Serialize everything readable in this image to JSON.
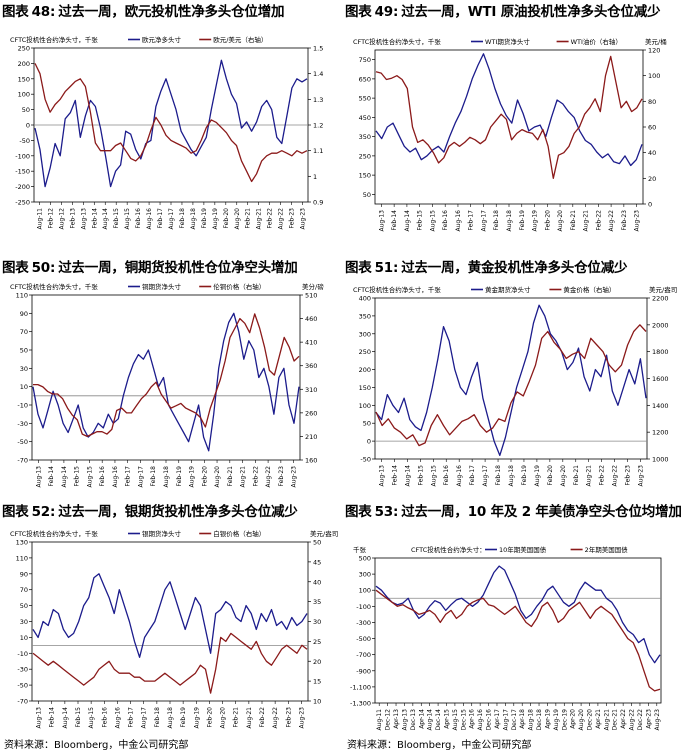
{
  "source_label": "资料来源：Bloomberg，中金公司研究部",
  "chart_data": [
    {
      "type": "line",
      "title": "过去一周，欧元投机性净多头仓位增加",
      "title_prefix": "图表",
      "title_num": "48:",
      "left_axis_label": "CFTC投机性合约净头寸，千张",
      "right_axis_label": "",
      "legend": [
        "欧元净多头寸",
        "欧元/美元（右轴）"
      ],
      "ylim_left": [
        -250,
        250
      ],
      "yticks_left": [
        "250",
        "200",
        "150",
        "100",
        "50",
        "0",
        "-50",
        "-100",
        "-150",
        "-200",
        "-250"
      ],
      "ylim_right": [
        0.9,
        1.5
      ],
      "yticks_right": [
        "1.5",
        "1.4",
        "1.3",
        "1.2",
        "1.1",
        "1",
        "0.9"
      ],
      "zero_left": 0,
      "xticks": [
        "Aug-11",
        "Feb-12",
        "Aug-12",
        "Feb-13",
        "Aug-13",
        "Feb-14",
        "Aug-14",
        "Feb-15",
        "Aug-15",
        "Feb-16",
        "Aug-16",
        "Feb-17",
        "Aug-17",
        "Feb-18",
        "Aug-18",
        "Feb-19",
        "Aug-19",
        "Feb-20",
        "Aug-20",
        "Feb-21",
        "Aug-21",
        "Feb-22",
        "Aug-22",
        "Feb-23",
        "Aug-23"
      ],
      "series": [
        {
          "name": "欧元净多头寸",
          "axis": "left",
          "color": "#1c1c8c",
          "values": [
            -10,
            -80,
            -200,
            -140,
            -60,
            -100,
            20,
            40,
            80,
            -40,
            30,
            80,
            60,
            -10,
            -100,
            -200,
            -150,
            -130,
            -20,
            -30,
            -80,
            -110,
            -60,
            -50,
            60,
            110,
            150,
            100,
            50,
            -20,
            -50,
            -80,
            -100,
            -70,
            -40,
            50,
            130,
            210,
            150,
            100,
            70,
            -10,
            10,
            -20,
            10,
            60,
            80,
            50,
            -40,
            -60,
            30,
            120,
            150,
            140,
            150
          ]
        },
        {
          "name": "欧元/美元（右轴）",
          "axis": "right",
          "color": "#8b1a1a",
          "values": [
            1.44,
            1.4,
            1.3,
            1.25,
            1.28,
            1.3,
            1.33,
            1.35,
            1.37,
            1.38,
            1.35,
            1.25,
            1.13,
            1.1,
            1.1,
            1.1,
            1.12,
            1.13,
            1.1,
            1.07,
            1.06,
            1.08,
            1.12,
            1.18,
            1.23,
            1.2,
            1.16,
            1.14,
            1.13,
            1.12,
            1.11,
            1.09,
            1.1,
            1.14,
            1.19,
            1.22,
            1.21,
            1.19,
            1.17,
            1.14,
            1.12,
            1.06,
            1.02,
            0.98,
            1.01,
            1.06,
            1.08,
            1.09,
            1.09,
            1.1,
            1.09,
            1.08,
            1.1,
            1.09,
            1.1
          ]
        }
      ]
    },
    {
      "type": "line",
      "title": "过去一周，WTI 原油投机性净多头仓位减少",
      "title_prefix": "图表",
      "title_num": "49:",
      "left_axis_label": "CFTC投机性合约净头寸，千张",
      "right_axis_label": "美元/桶",
      "legend": [
        "WTI期货净头寸",
        "WTI油价（右轴）"
      ],
      "ylim_left": [
        0,
        800
      ],
      "yticks_left": [
        "750",
        "650",
        "550",
        "450",
        "350",
        "250",
        "150",
        "50"
      ],
      "ylim_right": [
        0,
        120
      ],
      "yticks_right": [
        "120",
        "100",
        "80",
        "60",
        "40",
        "20",
        "0"
      ],
      "zero_left": null,
      "xticks": [
        "Aug-13",
        "Feb-14",
        "Aug-14",
        "Feb-15",
        "Aug-15",
        "Feb-16",
        "Aug-16",
        "Feb-17",
        "Aug-17",
        "Feb-18",
        "Aug-18",
        "Feb-19",
        "Aug-19",
        "Feb-20",
        "Aug-20",
        "Feb-21",
        "Aug-21",
        "Feb-22",
        "Aug-22",
        "Feb-23",
        "Aug-23"
      ],
      "series": [
        {
          "name": "WTI期货净头寸",
          "axis": "left",
          "color": "#1c1c8c",
          "values": [
            380,
            340,
            400,
            420,
            360,
            300,
            270,
            290,
            230,
            250,
            280,
            300,
            270,
            350,
            420,
            480,
            560,
            650,
            720,
            780,
            700,
            600,
            520,
            460,
            420,
            540,
            470,
            380,
            400,
            410,
            350,
            450,
            540,
            520,
            480,
            450,
            380,
            330,
            310,
            270,
            240,
            260,
            220,
            210,
            250,
            200,
            230,
            310
          ]
        },
        {
          "name": "WTI油价（右轴）",
          "axis": "right",
          "color": "#8b1a1a",
          "values": [
            103,
            102,
            97,
            98,
            100,
            97,
            90,
            60,
            48,
            50,
            46,
            40,
            32,
            36,
            45,
            48,
            45,
            48,
            52,
            50,
            47,
            50,
            60,
            65,
            70,
            66,
            50,
            55,
            58,
            56,
            55,
            50,
            58,
            45,
            20,
            38,
            40,
            45,
            55,
            60,
            70,
            75,
            82,
            72,
            100,
            115,
            95,
            75,
            80,
            72,
            75,
            82
          ]
        }
      ]
    },
    {
      "type": "line",
      "title": "过去一周，铜期货投机性仓位净空头增加",
      "title_prefix": "图表",
      "title_num": "50:",
      "left_axis_label": "CFTC投机性合约净头寸，千张",
      "right_axis_label": "美分/磅",
      "legend": [
        "铜期货净头寸",
        "伦铜价格（右轴）"
      ],
      "ylim_left": [
        -70,
        110
      ],
      "yticks_left": [
        "110",
        "90",
        "70",
        "50",
        "30",
        "10",
        "-10",
        "-30",
        "-50",
        "-70"
      ],
      "ylim_right": [
        160,
        510
      ],
      "yticks_right": [
        "510",
        "460",
        "410",
        "360",
        "310",
        "260",
        "210",
        "160"
      ],
      "zero_left": 0,
      "xticks": [
        "Aug-13",
        "Feb-14",
        "Aug-14",
        "Feb-15",
        "Aug-15",
        "Feb-16",
        "Aug-16",
        "Feb-17",
        "Aug-17",
        "Feb-18",
        "Aug-18",
        "Feb-19",
        "Aug-19",
        "Feb-20",
        "Aug-20",
        "Feb-21",
        "Aug-21",
        "Feb-22",
        "Aug-22",
        "Feb-23",
        "Aug-23"
      ],
      "series": [
        {
          "name": "铜期货净头寸",
          "axis": "left",
          "color": "#1c1c8c",
          "values": [
            10,
            -20,
            -35,
            -15,
            5,
            -10,
            -30,
            -40,
            -25,
            -10,
            -35,
            -45,
            -40,
            -30,
            -35,
            -20,
            -30,
            -25,
            0,
            20,
            35,
            45,
            40,
            50,
            30,
            10,
            20,
            -10,
            -20,
            -30,
            -40,
            -50,
            -30,
            -10,
            -45,
            -60,
            -20,
            30,
            60,
            80,
            90,
            70,
            40,
            60,
            50,
            20,
            30,
            10,
            -20,
            20,
            30,
            -10,
            -30,
            10
          ]
        },
        {
          "name": "伦铜价格（右轴）",
          "axis": "right",
          "color": "#8b1a1a",
          "values": [
            320,
            320,
            315,
            305,
            300,
            300,
            290,
            270,
            255,
            245,
            215,
            210,
            215,
            220,
            220,
            215,
            225,
            265,
            270,
            260,
            260,
            275,
            290,
            300,
            315,
            325,
            300,
            285,
            270,
            275,
            280,
            270,
            265,
            260,
            250,
            230,
            270,
            300,
            330,
            370,
            420,
            440,
            460,
            450,
            430,
            470,
            440,
            400,
            350,
            340,
            380,
            420,
            400,
            370,
            380
          ]
        }
      ]
    },
    {
      "type": "line",
      "title": "过去一周，黄金投机性净多头仓位减少",
      "title_prefix": "图表",
      "title_num": "51:",
      "left_axis_label": "CFTC投机性合约净头寸，千张",
      "right_axis_label": "美元/盎司",
      "legend": [
        "黄金期货净头寸",
        "黄金价格（右轴）"
      ],
      "ylim_left": [
        -50,
        400
      ],
      "yticks_left": [
        "400",
        "350",
        "300",
        "250",
        "200",
        "150",
        "100",
        "50",
        "0",
        "-50"
      ],
      "ylim_right": [
        1000,
        2200
      ],
      "yticks_right": [
        "2200",
        "2000",
        "1800",
        "1600",
        "1400",
        "1200",
        "1000"
      ],
      "zero_left": 0,
      "xticks": [
        "Aug-13",
        "Feb-14",
        "Aug-14",
        "Feb-15",
        "Aug-15",
        "Feb-16",
        "Aug-16",
        "Feb-17",
        "Aug-17",
        "Feb-18",
        "Aug-18",
        "Feb-19",
        "Aug-19",
        "Feb-20",
        "Aug-20",
        "Feb-21",
        "Aug-21",
        "Feb-22",
        "Aug-22",
        "Feb-23",
        "Aug-23"
      ],
      "series": [
        {
          "name": "黄金期货净头寸",
          "axis": "left",
          "color": "#1c1c8c",
          "values": [
            80,
            60,
            130,
            100,
            80,
            120,
            60,
            40,
            30,
            80,
            150,
            230,
            320,
            280,
            200,
            150,
            130,
            180,
            220,
            120,
            60,
            0,
            -40,
            10,
            80,
            150,
            200,
            250,
            330,
            380,
            350,
            300,
            280,
            250,
            200,
            220,
            260,
            180,
            140,
            200,
            180,
            240,
            140,
            100,
            150,
            200,
            160,
            230,
            120
          ]
        },
        {
          "name": "黄金价格（右轴）",
          "axis": "right",
          "color": "#8b1a1a",
          "values": [
            1350,
            1250,
            1300,
            1230,
            1200,
            1150,
            1180,
            1100,
            1120,
            1250,
            1330,
            1250,
            1180,
            1230,
            1280,
            1300,
            1330,
            1250,
            1200,
            1230,
            1300,
            1280,
            1420,
            1500,
            1470,
            1580,
            1700,
            1900,
            1950,
            1870,
            1820,
            1750,
            1780,
            1800,
            1750,
            1900,
            1850,
            1800,
            1700,
            1650,
            1700,
            1850,
            1950,
            2000,
            1950
          ]
        }
      ]
    },
    {
      "type": "line",
      "title": "过去一周，银期货投机性净多头仓位减少",
      "title_prefix": "图表",
      "title_num": "52:",
      "left_axis_label": "CFTC投机性合约净头寸，千张",
      "right_axis_label": "美元/盎司",
      "legend": [
        "银期货净头寸",
        "白银价格（右轴）"
      ],
      "ylim_left": [
        -70,
        130
      ],
      "yticks_left": [
        "130",
        "110",
        "90",
        "70",
        "50",
        "30",
        "10",
        "-10",
        "-30",
        "-50",
        "-70"
      ],
      "ylim_right": [
        10,
        50
      ],
      "yticks_right": [
        "50",
        "45",
        "40",
        "35",
        "30",
        "25",
        "20",
        "15",
        "10"
      ],
      "zero_left": 0,
      "xticks": [
        "Aug-13",
        "Feb-14",
        "Aug-14",
        "Feb-15",
        "Aug-15",
        "Feb-16",
        "Aug-16",
        "Feb-17",
        "Aug-17",
        "Feb-18",
        "Aug-18",
        "Feb-19",
        "Aug-19",
        "Feb-20",
        "Aug-20",
        "Feb-21",
        "Aug-21",
        "Feb-22",
        "Aug-22",
        "Feb-23",
        "Aug-23"
      ],
      "series": [
        {
          "name": "银期货净头寸",
          "axis": "left",
          "color": "#1c1c8c",
          "values": [
            20,
            10,
            30,
            25,
            45,
            40,
            20,
            10,
            15,
            30,
            50,
            60,
            85,
            90,
            75,
            60,
            40,
            70,
            50,
            30,
            5,
            -15,
            10,
            20,
            30,
            50,
            70,
            80,
            60,
            40,
            20,
            40,
            60,
            50,
            20,
            -10,
            40,
            45,
            55,
            50,
            35,
            30,
            50,
            40,
            20,
            40,
            30,
            45,
            25,
            30,
            20,
            35,
            25,
            30,
            40
          ]
        },
        {
          "name": "白银价格（右轴）",
          "axis": "right",
          "color": "#8b1a1a",
          "values": [
            22,
            21,
            20,
            19,
            20,
            19,
            18,
            17,
            16,
            15,
            14,
            15,
            16,
            18,
            19,
            20,
            18,
            17,
            17,
            17,
            16,
            16,
            15,
            15,
            15,
            16,
            17,
            16,
            15,
            14,
            15,
            16,
            17,
            19,
            18,
            12,
            18,
            26,
            25,
            27,
            26,
            25,
            24,
            23,
            25,
            22,
            20,
            19,
            21,
            23,
            24,
            23,
            22,
            24,
            23
          ]
        }
      ]
    },
    {
      "type": "line",
      "title": "过去一周，10 年及 2 年美债净空头仓位均增加",
      "title_prefix": "图表",
      "title_num": "53:",
      "left_axis_label": "千张",
      "right_axis_label": "",
      "legend_prefix": "CFTC投机性合约净头寸：",
      "legend": [
        "10年期美国国债",
        "2年期美国国债"
      ],
      "ylim_left": [
        -1300,
        500
      ],
      "yticks_left": [
        "500",
        "300",
        "100",
        "-100",
        "-300",
        "-500",
        "-700",
        "-900",
        "-1,100",
        "-1,300"
      ],
      "zero_left": 0,
      "xticks": [
        "Aug-11",
        "Dec-12",
        "Apr-13",
        "Aug-13",
        "Dec-13",
        "Apr-14",
        "Aug-14",
        "Dec-14",
        "Apr-15",
        "Aug-15",
        "Dec-15",
        "Apr-16",
        "Aug-16",
        "Dec-16",
        "Apr-17",
        "Aug-17",
        "Dec-17",
        "Apr-18",
        "Aug-18",
        "Dec-18",
        "Apr-19",
        "Aug-19",
        "Dec-19",
        "Apr-20",
        "Aug-20",
        "Dec-20",
        "Apr-21",
        "Aug-21",
        "Dec-21",
        "Apr-22",
        "Aug-22",
        "Dec-22",
        "Apr-23",
        "Aug-23"
      ],
      "series": [
        {
          "name": "10年期美国国债",
          "axis": "left",
          "color": "#1c1c8c",
          "values": [
            150,
            100,
            20,
            -50,
            -80,
            -60,
            0,
            -150,
            -250,
            -200,
            -100,
            -30,
            -60,
            -150,
            -80,
            -20,
            0,
            -50,
            -100,
            -50,
            40,
            180,
            320,
            400,
            350,
            200,
            50,
            -150,
            -250,
            -200,
            -100,
            -20,
            100,
            150,
            50,
            -50,
            -100,
            -50,
            100,
            200,
            150,
            100,
            100,
            0,
            -50,
            -150,
            -300,
            -400,
            -450,
            -550,
            -500,
            -700,
            -800,
            -700
          ]
        },
        {
          "name": "2年期美国国债",
          "axis": "left",
          "color": "#8b1a1a",
          "values": [
            100,
            50,
            0,
            -50,
            -100,
            -80,
            -120,
            -150,
            -200,
            -180,
            -150,
            -200,
            -300,
            -200,
            -150,
            -250,
            -200,
            -100,
            -50,
            -20,
            0,
            -80,
            -100,
            -150,
            -200,
            -150,
            -100,
            -200,
            -300,
            -350,
            -250,
            -100,
            -50,
            -150,
            -300,
            -250,
            -150,
            -100,
            -50,
            -150,
            -250,
            -150,
            -100,
            -150,
            -200,
            -300,
            -400,
            -500,
            -550,
            -700,
            -900,
            -1100,
            -1150,
            -1130
          ]
        }
      ]
    }
  ]
}
